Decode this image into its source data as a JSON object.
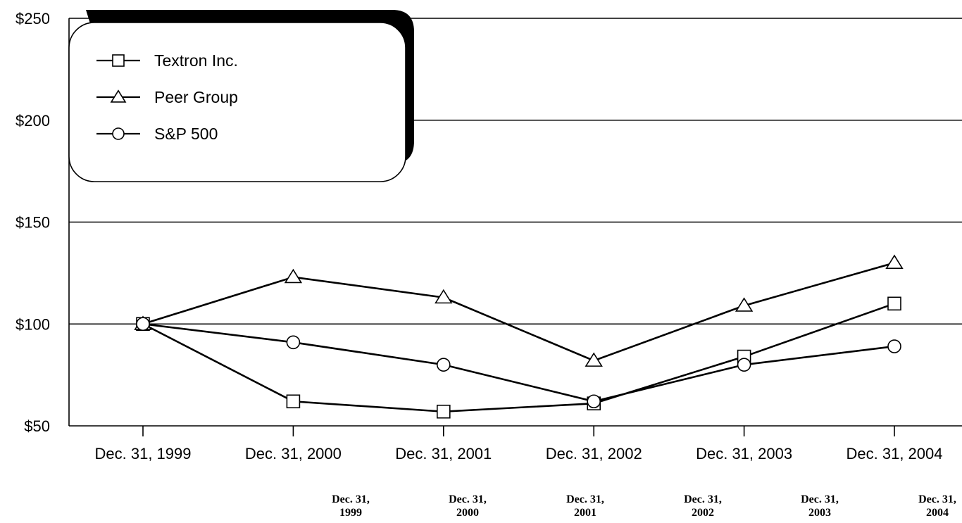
{
  "chart_data": {
    "type": "line",
    "x": [
      "Dec. 31, 1999",
      "Dec. 31, 2000",
      "Dec. 31, 2001",
      "Dec. 31, 2002",
      "Dec. 31, 2003",
      "Dec. 31, 2004"
    ],
    "yticks": [
      "$250",
      "$200",
      "$150",
      "$100",
      "$50"
    ],
    "ylim": [
      50,
      250
    ],
    "grid": true,
    "legend_position": "top-left",
    "series": [
      {
        "name": "Textron Inc.",
        "marker": "square",
        "values": [
          100,
          62,
          57,
          61,
          84,
          110
        ]
      },
      {
        "name": "Peer Group",
        "marker": "triangle",
        "values": [
          100,
          123,
          113,
          82,
          109,
          130
        ]
      },
      {
        "name": "S&P 500",
        "marker": "circle",
        "values": [
          100,
          91,
          80,
          62,
          80,
          89
        ]
      }
    ]
  },
  "footer_dates": [
    {
      "line1": "Dec. 31,",
      "line2": "1999"
    },
    {
      "line1": "Dec. 31,",
      "line2": "2000"
    },
    {
      "line1": "Dec. 31,",
      "line2": "2001"
    },
    {
      "line1": "Dec. 31,",
      "line2": "2002"
    },
    {
      "line1": "Dec. 31,",
      "line2": "2003"
    },
    {
      "line1": "Dec. 31,",
      "line2": "2004"
    }
  ]
}
